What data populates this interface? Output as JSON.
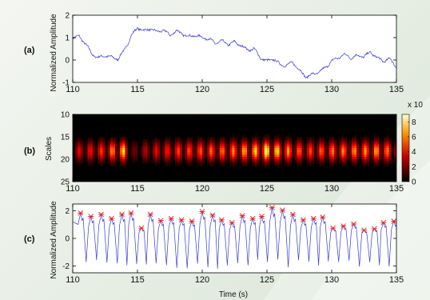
{
  "chart_data": [
    {
      "panel": "(a)",
      "type": "line",
      "ylabel": "Normalized Amplitude",
      "xlabel": "",
      "xlim": [
        110,
        135
      ],
      "ylim": [
        -1,
        2
      ],
      "xticks": [
        "110",
        "115",
        "120",
        "125",
        "130",
        "135"
      ],
      "yticks": [
        "-1",
        "0",
        "1",
        "2"
      ],
      "color": "#3a3ad6",
      "series": [
        {
          "x": [
            110,
            110.5,
            111,
            111.5,
            112,
            112.5,
            113,
            113.5,
            114,
            114.5,
            115,
            115.5,
            116,
            116.5,
            117,
            117.5,
            118,
            118.5,
            119,
            119.5,
            120,
            120.5,
            121,
            121.5,
            122,
            122.5,
            123,
            123.5,
            124,
            124.5,
            125,
            125.5,
            126,
            126.5,
            127,
            127.5,
            128,
            128.5,
            129,
            129.5,
            130,
            130.5,
            131,
            131.5,
            132,
            132.5,
            133,
            133.5,
            134,
            134.5,
            135
          ],
          "y": [
            1.0,
            1.05,
            0.72,
            0.25,
            0.1,
            0.2,
            0.12,
            0.05,
            0.45,
            1.05,
            1.45,
            1.3,
            1.4,
            1.25,
            1.35,
            1.1,
            1.3,
            1.15,
            1.05,
            1.1,
            1.0,
            0.95,
            0.75,
            0.85,
            0.7,
            0.8,
            0.65,
            0.45,
            0.5,
            0.1,
            -0.05,
            0.05,
            -0.2,
            -0.25,
            -0.1,
            -0.45,
            -0.75,
            -0.65,
            -0.55,
            -0.35,
            -0.05,
            0.1,
            0.25,
            0.1,
            0.2,
            0.15,
            0.35,
            0.1,
            -0.05,
            0.05,
            -0.3
          ]
        }
      ]
    },
    {
      "panel": "(b)",
      "type": "heatmap",
      "ylabel": "Scales",
      "xlim": [
        110,
        135
      ],
      "ylim": [
        10,
        25
      ],
      "xticks": [
        "110",
        "115",
        "120",
        "125",
        "130",
        "135"
      ],
      "yticks": [
        "10",
        "15",
        "20",
        "25"
      ],
      "colorbar": {
        "ticks": [
          "0",
          "2",
          "4",
          "6",
          "8"
        ],
        "multiplier": "x 10"
      },
      "ridge_center_scale": 18.2,
      "ridge_intensity": {
        "x": [
          110,
          112,
          114,
          114.5,
          116,
          118,
          120,
          122,
          124,
          125,
          126,
          128,
          130,
          132,
          134,
          135
        ],
        "v": [
          0.35,
          0.45,
          0.8,
          0.15,
          0.35,
          0.5,
          0.55,
          0.6,
          0.75,
          0.95,
          0.75,
          0.5,
          0.6,
          0.65,
          0.7,
          0.4
        ]
      }
    },
    {
      "panel": "(c)",
      "type": "line",
      "ylabel": "Normalized Amplitude",
      "xlabel": "Time (s)",
      "xlim": [
        110,
        135
      ],
      "ylim": [
        -2.5,
        2.5
      ],
      "xticks": [
        "110",
        "115",
        "120",
        "125",
        "130",
        "135"
      ],
      "yticks": [
        "-2",
        "0",
        "2"
      ],
      "color": "#3a3ad6",
      "marker_color": "#e8231e",
      "approx_cycle_s": 0.85,
      "peaks": [
        {
          "x": 110.6,
          "y": 1.85
        },
        {
          "x": 111.4,
          "y": 1.6
        },
        {
          "x": 112.2,
          "y": 1.75
        },
        {
          "x": 113.0,
          "y": 1.45
        },
        {
          "x": 113.8,
          "y": 1.75
        },
        {
          "x": 114.5,
          "y": 1.85
        },
        {
          "x": 115.3,
          "y": 0.75
        },
        {
          "x": 116.0,
          "y": 1.75
        },
        {
          "x": 116.8,
          "y": 1.3
        },
        {
          "x": 117.6,
          "y": 1.45
        },
        {
          "x": 118.4,
          "y": 1.35
        },
        {
          "x": 119.2,
          "y": 1.25
        },
        {
          "x": 120.0,
          "y": 1.95
        },
        {
          "x": 120.8,
          "y": 1.7
        },
        {
          "x": 121.5,
          "y": 1.35
        },
        {
          "x": 122.3,
          "y": 1.15
        },
        {
          "x": 123.1,
          "y": 1.65
        },
        {
          "x": 123.9,
          "y": 1.45
        },
        {
          "x": 124.6,
          "y": 1.6
        },
        {
          "x": 125.4,
          "y": 2.25
        },
        {
          "x": 126.2,
          "y": 2.05
        },
        {
          "x": 127.0,
          "y": 1.75
        },
        {
          "x": 127.8,
          "y": 1.35
        },
        {
          "x": 128.6,
          "y": 1.45
        },
        {
          "x": 129.3,
          "y": 1.55
        },
        {
          "x": 130.1,
          "y": 0.75
        },
        {
          "x": 130.9,
          "y": 0.9
        },
        {
          "x": 131.7,
          "y": 1.05
        },
        {
          "x": 132.5,
          "y": 0.6
        },
        {
          "x": 133.3,
          "y": 0.7
        },
        {
          "x": 134.0,
          "y": 1.15
        },
        {
          "x": 134.8,
          "y": 1.25
        }
      ]
    }
  ]
}
